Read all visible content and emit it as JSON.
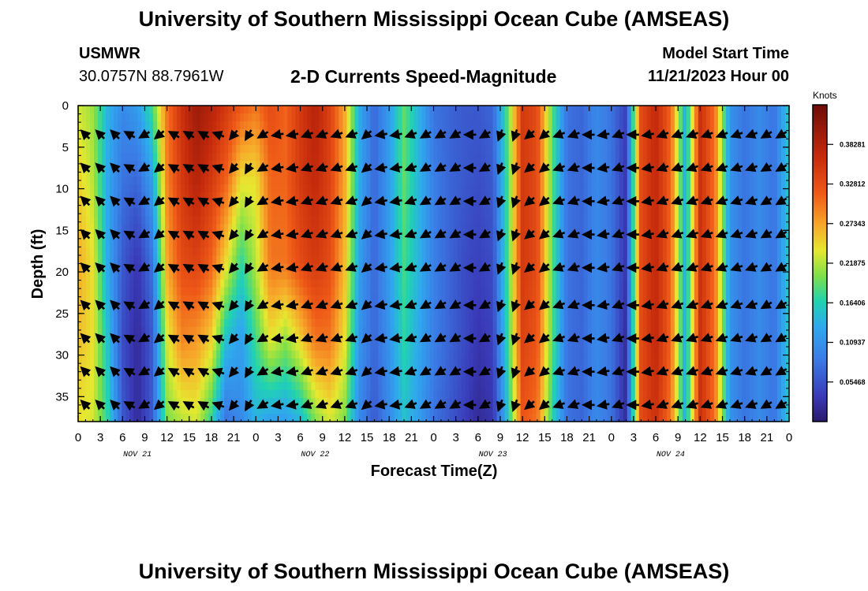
{
  "header": {
    "title": "University of Southern Mississippi Ocean Cube (AMSEAS)",
    "station": "USMWR",
    "coords": "30.0757N  88.7961W",
    "product": "2-D Currents Speed-Magnitude",
    "model_start_label": "Model Start Time",
    "model_start_value": "11/21/2023 Hour 00"
  },
  "footer": {
    "title": "University of Southern Mississippi Ocean Cube (AMSEAS)"
  },
  "chart_data": {
    "type": "heatmap",
    "title": "2-D Currents Speed-Magnitude",
    "xlabel": "Forecast Time(Z)",
    "ylabel": "Depth (ft)",
    "x_ticks": [
      "0",
      "3",
      "6",
      "9",
      "12",
      "15",
      "18",
      "21",
      "0",
      "3",
      "6",
      "9",
      "12",
      "15",
      "18",
      "21",
      "0",
      "3",
      "6",
      "9",
      "12",
      "15",
      "18",
      "21",
      "0",
      "3",
      "6",
      "9",
      "12",
      "15",
      "18",
      "21",
      "0"
    ],
    "date_labels": [
      {
        "label": "NOV 21",
        "hour": 24
      },
      {
        "label": "NOV 22",
        "hour": 96
      },
      {
        "label": "NOV 23",
        "hour": 168
      },
      {
        "label": "NOV 24",
        "hour": 240
      }
    ],
    "xlim": [
      0,
      288
    ],
    "y_ticks": [
      0,
      5,
      10,
      15,
      20,
      25,
      30,
      35
    ],
    "ylim": [
      0,
      38
    ],
    "colorbar": {
      "unit": "Knots",
      "ticks": [
        "0.05468",
        "0.10937",
        "0.16406",
        "0.21875",
        "0.27343",
        "0.32812",
        "0.38281"
      ],
      "range": [
        0,
        0.4375
      ]
    },
    "columns": [
      {
        "hour": 0,
        "profile": [
          0.23,
          0.25,
          0.27,
          0.26,
          0.24
        ]
      },
      {
        "hour": 6,
        "profile": [
          0.21,
          0.22,
          0.24,
          0.24,
          0.23
        ]
      },
      {
        "hour": 12,
        "profile": [
          0.14,
          0.13,
          0.13,
          0.15,
          0.17
        ]
      },
      {
        "hour": 18,
        "profile": [
          0.1,
          0.08,
          0.06,
          0.05,
          0.06
        ]
      },
      {
        "hour": 24,
        "profile": [
          0.12,
          0.07,
          0.03,
          0.02,
          0.02
        ]
      },
      {
        "hour": 30,
        "profile": [
          0.18,
          0.12,
          0.08,
          0.06,
          0.06
        ]
      },
      {
        "hour": 36,
        "profile": [
          0.3,
          0.29,
          0.27,
          0.23,
          0.2
        ]
      },
      {
        "hour": 42,
        "profile": [
          0.36,
          0.35,
          0.33,
          0.29,
          0.22
        ]
      },
      {
        "hour": 48,
        "profile": [
          0.4,
          0.38,
          0.34,
          0.28,
          0.23
        ]
      },
      {
        "hour": 54,
        "profile": [
          0.38,
          0.35,
          0.31,
          0.25,
          0.17
        ]
      },
      {
        "hour": 60,
        "profile": [
          0.35,
          0.31,
          0.24,
          0.15,
          0.08
        ]
      },
      {
        "hour": 66,
        "profile": [
          0.32,
          0.24,
          0.17,
          0.12,
          0.1
        ]
      },
      {
        "hour": 72,
        "profile": [
          0.3,
          0.24,
          0.22,
          0.18,
          0.14
        ]
      },
      {
        "hour": 78,
        "profile": [
          0.33,
          0.31,
          0.3,
          0.24,
          0.12
        ]
      },
      {
        "hour": 84,
        "profile": [
          0.31,
          0.31,
          0.3,
          0.21,
          0.12
        ]
      },
      {
        "hour": 90,
        "profile": [
          0.35,
          0.35,
          0.33,
          0.25,
          0.14
        ]
      },
      {
        "hour": 96,
        "profile": [
          0.38,
          0.37,
          0.35,
          0.3,
          0.2
        ]
      },
      {
        "hour": 102,
        "profile": [
          0.34,
          0.34,
          0.33,
          0.3,
          0.23
        ]
      },
      {
        "hour": 108,
        "profile": [
          0.27,
          0.27,
          0.26,
          0.24,
          0.2
        ]
      },
      {
        "hour": 114,
        "profile": [
          0.13,
          0.13,
          0.12,
          0.11,
          0.1
        ]
      },
      {
        "hour": 120,
        "profile": [
          0.07,
          0.07,
          0.07,
          0.07,
          0.06
        ]
      },
      {
        "hour": 126,
        "profile": [
          0.12,
          0.12,
          0.12,
          0.11,
          0.1
        ]
      },
      {
        "hour": 132,
        "profile": [
          0.19,
          0.19,
          0.18,
          0.17,
          0.15
        ]
      },
      {
        "hour": 138,
        "profile": [
          0.14,
          0.14,
          0.14,
          0.13,
          0.12
        ]
      },
      {
        "hour": 144,
        "profile": [
          0.08,
          0.09,
          0.09,
          0.09,
          0.08
        ]
      },
      {
        "hour": 150,
        "profile": [
          0.07,
          0.07,
          0.07,
          0.07,
          0.06
        ]
      },
      {
        "hour": 156,
        "profile": [
          0.06,
          0.06,
          0.05,
          0.05,
          0.04
        ]
      },
      {
        "hour": 162,
        "profile": [
          0.06,
          0.05,
          0.04,
          0.03,
          0.02
        ]
      },
      {
        "hour": 168,
        "profile": [
          0.07,
          0.06,
          0.05,
          0.04,
          0.03
        ]
      },
      {
        "hour": 174,
        "profile": [
          0.19,
          0.18,
          0.18,
          0.17,
          0.15
        ]
      },
      {
        "hour": 180,
        "profile": [
          0.35,
          0.35,
          0.35,
          0.34,
          0.32
        ]
      },
      {
        "hour": 186,
        "profile": [
          0.33,
          0.33,
          0.33,
          0.32,
          0.3
        ]
      },
      {
        "hour": 192,
        "profile": [
          0.19,
          0.19,
          0.19,
          0.19,
          0.17
        ]
      },
      {
        "hour": 198,
        "profile": [
          0.08,
          0.08,
          0.08,
          0.08,
          0.08
        ]
      },
      {
        "hour": 204,
        "profile": [
          0.07,
          0.07,
          0.07,
          0.07,
          0.07
        ]
      },
      {
        "hour": 210,
        "profile": [
          0.1,
          0.1,
          0.1,
          0.1,
          0.1
        ]
      },
      {
        "hour": 216,
        "profile": [
          0.08,
          0.08,
          0.08,
          0.08,
          0.08
        ]
      },
      {
        "hour": 222,
        "profile": [
          0.04,
          0.03,
          0.03,
          0.02,
          0.02
        ]
      },
      {
        "hour": 228,
        "profile": [
          0.33,
          0.33,
          0.33,
          0.33,
          0.33
        ]
      },
      {
        "hour": 234,
        "profile": [
          0.37,
          0.37,
          0.37,
          0.37,
          0.36
        ]
      },
      {
        "hour": 240,
        "profile": [
          0.31,
          0.31,
          0.31,
          0.31,
          0.3
        ]
      },
      {
        "hour": 246,
        "profile": [
          0.13,
          0.13,
          0.13,
          0.13,
          0.13
        ]
      },
      {
        "hour": 252,
        "profile": [
          0.36,
          0.36,
          0.36,
          0.36,
          0.36
        ]
      },
      {
        "hour": 258,
        "profile": [
          0.3,
          0.3,
          0.3,
          0.3,
          0.3
        ]
      },
      {
        "hour": 264,
        "profile": [
          0.11,
          0.11,
          0.11,
          0.11,
          0.11
        ]
      },
      {
        "hour": 270,
        "profile": [
          0.08,
          0.08,
          0.08,
          0.08,
          0.08
        ]
      },
      {
        "hour": 276,
        "profile": [
          0.1,
          0.1,
          0.1,
          0.1,
          0.1
        ]
      },
      {
        "hour": 282,
        "profile": [
          0.08,
          0.08,
          0.08,
          0.08,
          0.08
        ]
      },
      {
        "hour": 288,
        "profile": [
          0.16,
          0.16,
          0.16,
          0.16,
          0.16
        ]
      }
    ],
    "profile_depths_ft": [
      0,
      9,
      19,
      28,
      38
    ],
    "vector_depths_ft": [
      3.5,
      7.5,
      11.5,
      15.5,
      19.5,
      24,
      28,
      32,
      36
    ],
    "vector_hours": [
      3,
      9,
      15,
      21,
      27,
      33,
      39,
      45,
      51,
      57,
      63,
      69,
      75,
      81,
      87,
      93,
      99,
      105,
      111,
      117,
      123,
      129,
      135,
      141,
      147,
      153,
      159,
      165,
      171,
      177,
      183,
      189,
      195,
      201,
      207,
      213,
      219,
      225,
      231,
      237,
      243,
      249,
      255,
      261,
      267,
      273,
      279,
      285
    ],
    "vector_direction_deg": [
      315,
      315,
      315,
      300,
      240,
      230,
      300,
      300,
      300,
      290,
      220,
      210,
      240,
      260,
      260,
      250,
      250,
      250,
      250,
      230,
      260,
      260,
      250,
      240,
      240,
      240,
      270,
      240,
      200,
      200,
      230,
      230,
      250,
      250,
      270,
      260,
      250,
      270,
      260,
      250,
      250,
      250,
      250,
      250,
      250,
      250,
      240,
      240
    ]
  }
}
